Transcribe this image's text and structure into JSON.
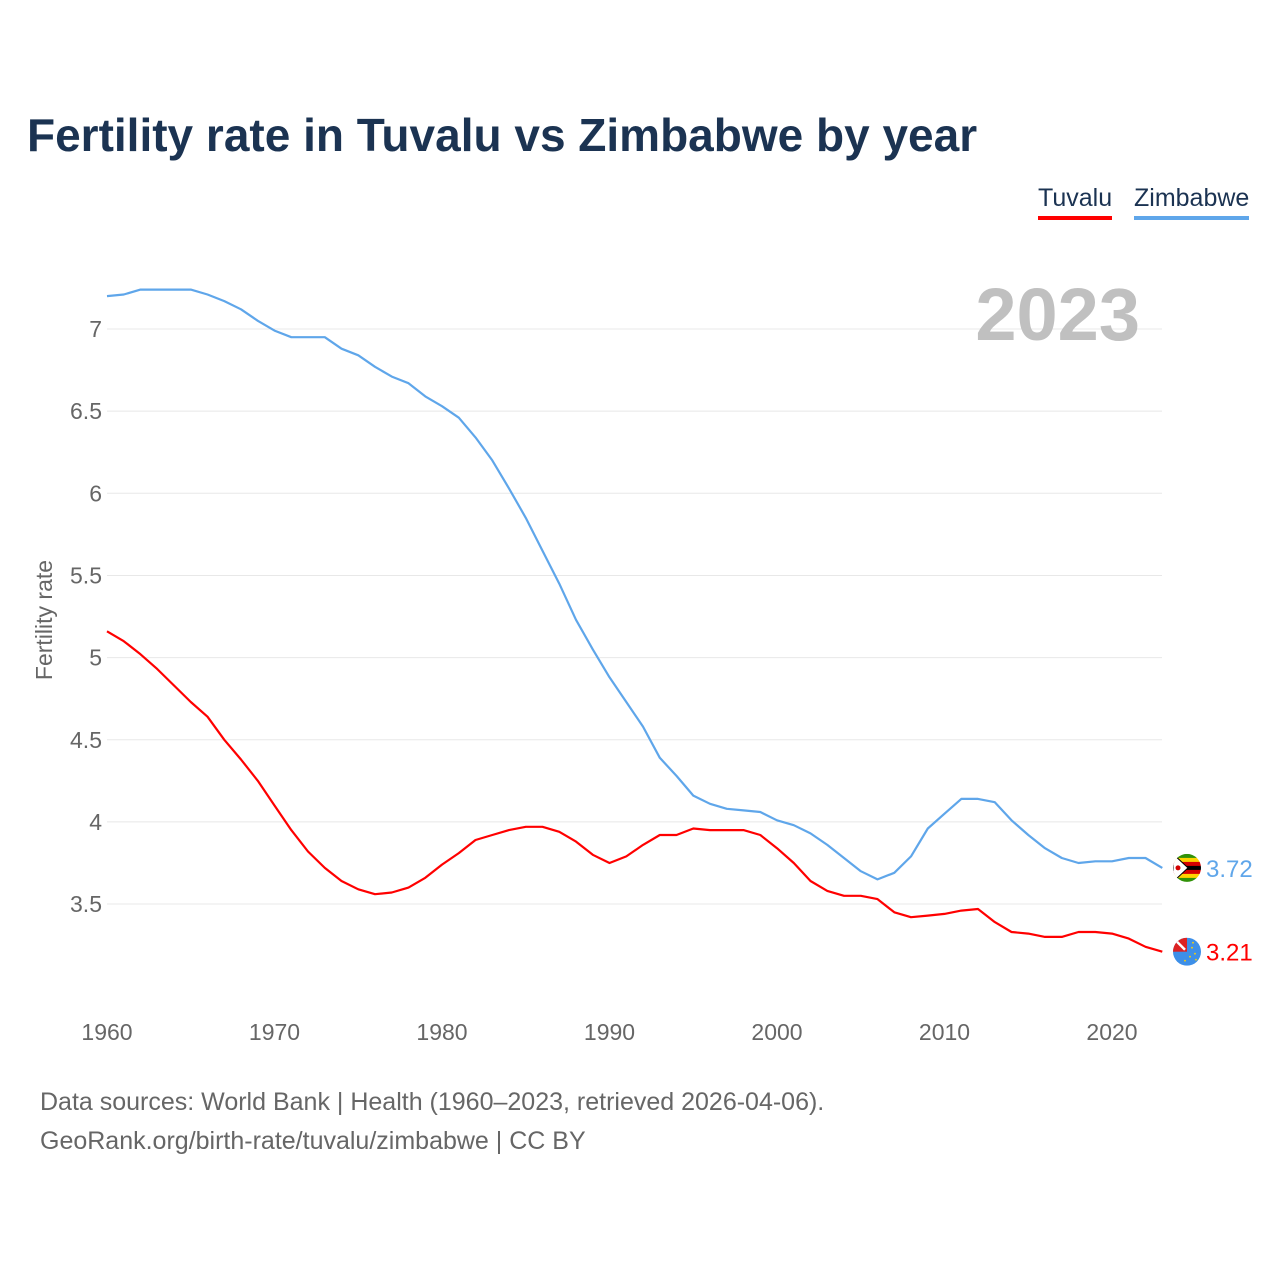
{
  "chart_data": {
    "type": "line",
    "title": "Fertility rate in Tuvalu vs Zimbabwe by year",
    "ylabel": "Fertility rate",
    "xlabel": "",
    "year_label": "2023",
    "ylim": [
      3.0,
      7.3
    ],
    "xlim": [
      1960,
      2023
    ],
    "yticks": [
      3.5,
      4,
      4.5,
      5,
      5.5,
      6,
      6.5,
      7
    ],
    "ytick_labels": [
      "3.5",
      "4",
      "4.5",
      "5",
      "5.5",
      "6",
      "6.5",
      "7"
    ],
    "xticks": [
      1960,
      1970,
      1980,
      1990,
      2000,
      2010,
      2020
    ],
    "xtick_labels": [
      "1960",
      "1970",
      "1980",
      "1990",
      "2000",
      "2010",
      "2020"
    ],
    "grid": true,
    "legend_position": "top-right",
    "x_start": 1960,
    "series": [
      {
        "name": "Tuvalu",
        "color": "#ff0000",
        "end_label": "3.21",
        "flag": "tuvalu-flag",
        "values": [
          5.16,
          5.1,
          5.02,
          4.93,
          4.83,
          4.73,
          4.64,
          4.5,
          4.38,
          4.25,
          4.1,
          3.95,
          3.82,
          3.72,
          3.64,
          3.59,
          3.56,
          3.57,
          3.6,
          3.66,
          3.74,
          3.81,
          3.89,
          3.92,
          3.95,
          3.97,
          3.97,
          3.94,
          3.88,
          3.8,
          3.75,
          3.79,
          3.86,
          3.92,
          3.92,
          3.96,
          3.95,
          3.95,
          3.95,
          3.92,
          3.84,
          3.75,
          3.64,
          3.58,
          3.55,
          3.55,
          3.53,
          3.45,
          3.42,
          3.43,
          3.44,
          3.46,
          3.47,
          3.39,
          3.33,
          3.32,
          3.3,
          3.3,
          3.33,
          3.33,
          3.32,
          3.29,
          3.24,
          3.21
        ]
      },
      {
        "name": "Zimbabwe",
        "color": "#5fa6ea",
        "end_label": "3.72",
        "flag": "zimbabwe-flag",
        "values": [
          7.2,
          7.21,
          7.24,
          7.24,
          7.24,
          7.24,
          7.21,
          7.17,
          7.12,
          7.05,
          6.99,
          6.95,
          6.95,
          6.95,
          6.88,
          6.84,
          6.77,
          6.71,
          6.67,
          6.59,
          6.53,
          6.46,
          6.34,
          6.2,
          6.03,
          5.85,
          5.65,
          5.45,
          5.23,
          5.05,
          4.88,
          4.73,
          4.58,
          4.39,
          4.28,
          4.16,
          4.11,
          4.08,
          4.07,
          4.06,
          4.01,
          3.98,
          3.93,
          3.86,
          3.78,
          3.7,
          3.65,
          3.69,
          3.79,
          3.96,
          4.05,
          4.14,
          4.14,
          4.12,
          4.01,
          3.92,
          3.84,
          3.78,
          3.75,
          3.76,
          3.76,
          3.78,
          3.78,
          3.72
        ]
      }
    ]
  },
  "sources": {
    "line1": "Data sources: World Bank | Health (1960–2023, retrieved 2026-04-06).",
    "line2": "GeoRank.org/birth-rate/tuvalu/zimbabwe | CC BY"
  }
}
